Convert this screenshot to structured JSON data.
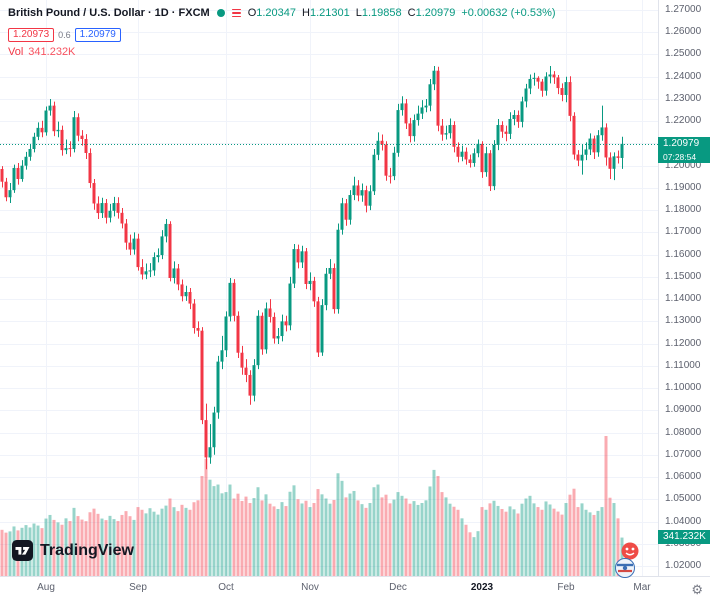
{
  "header": {
    "symbol_title": "British Pound / U.S. Dollar · 1D · FXCM",
    "ohlc": {
      "o_label": "O",
      "o": "1.20347",
      "h_label": "H",
      "h": "1.21301",
      "l_label": "L",
      "l": "1.19858",
      "c_label": "C",
      "c": "1.20979",
      "change": "+0.00632 (+0.53%)"
    },
    "bid": "1.20973",
    "spread": "0.6",
    "ask": "1.20979",
    "vol_label": "Vol",
    "vol_value": "341.232K"
  },
  "price_scale": {
    "labels": [
      "1.27000",
      "1.26000",
      "1.25000",
      "1.24000",
      "1.23000",
      "1.22000",
      "1.21000",
      "1.20000",
      "1.19000",
      "1.18000",
      "1.17000",
      "1.16000",
      "1.15000",
      "1.14000",
      "1.13000",
      "1.12000",
      "1.11000",
      "1.10000",
      "1.09000",
      "1.08000",
      "1.07000",
      "1.06000",
      "1.05000",
      "1.04000",
      "1.03000",
      "1.02000"
    ],
    "last_price_label": "1.20979",
    "countdown": "07:28:54",
    "volume_badge": "341.232K"
  },
  "time_scale": {
    "ticks": [
      {
        "label": "Aug",
        "index": 11
      },
      {
        "label": "Sep",
        "index": 34
      },
      {
        "label": "Oct",
        "index": 56
      },
      {
        "label": "Nov",
        "index": 77
      },
      {
        "label": "Dec",
        "index": 99
      },
      {
        "label": "2023",
        "index": 120,
        "year": true
      },
      {
        "label": "Feb",
        "index": 141
      },
      {
        "label": "Mar",
        "index": 160
      }
    ]
  },
  "footer": {
    "logo_text": "TradingView"
  },
  "icons": {
    "settings_gear": "⚙"
  },
  "colors": {
    "up": "#089981",
    "down": "#f23645",
    "bid": "#f23645",
    "ask": "#2962ff",
    "grid": "#f0f3fa",
    "axis_text": "#5d616e",
    "year_text": "#131722",
    "badge_bg": "#089981",
    "vol_value_text": "#f7525f"
  },
  "chart_data": {
    "type": "candlestick",
    "title": "British Pound / U.S. Dollar",
    "symbol": "GBPUSD",
    "interval": "1D",
    "exchange": "FXCM",
    "legend_ohlc": {
      "open": 1.20347,
      "high": 1.21301,
      "low": 1.19858,
      "close": 1.20979,
      "change": 0.00632,
      "change_pct": 0.53
    },
    "current_volume_k": 341.232,
    "x_tick_labels": [
      "Aug",
      "Sep",
      "Oct",
      "Nov",
      "Dec",
      "2023",
      "Feb",
      "Mar"
    ],
    "y_tick_range": [
      1.02,
      1.27
    ],
    "y_tick_step": 0.01,
    "price_range": [
      1.0155,
      1.2745
    ],
    "grid": true,
    "volume_max": 1243,
    "candles": [
      [
        1.1985,
        1.1998,
        1.1902,
        1.1928
      ],
      [
        1.1928,
        1.1945,
        1.184,
        1.1858
      ],
      [
        1.1858,
        1.1922,
        1.1832,
        1.189
      ],
      [
        1.189,
        1.2005,
        1.1878,
        1.199
      ],
      [
        1.199,
        1.2012,
        1.1915,
        1.194
      ],
      [
        1.194,
        1.2025,
        1.1928,
        1.2
      ],
      [
        1.2,
        1.2062,
        1.1982,
        1.204
      ],
      [
        1.204,
        1.2098,
        1.2022,
        1.2075
      ],
      [
        1.2075,
        1.2148,
        1.206,
        1.213
      ],
      [
        1.213,
        1.2195,
        1.2115,
        1.217
      ],
      [
        1.217,
        1.2202,
        1.2128,
        1.215
      ],
      [
        1.215,
        1.2266,
        1.2135,
        1.2248
      ],
      [
        1.2248,
        1.23,
        1.2225,
        1.227
      ],
      [
        1.227,
        1.2288,
        1.2133,
        1.2155
      ],
      [
        1.2155,
        1.2198,
        1.2128,
        1.2161
      ],
      [
        1.2161,
        1.218,
        1.2045,
        1.207
      ],
      [
        1.207,
        1.2118,
        1.2052,
        1.2079
      ],
      [
        1.2079,
        1.211,
        1.204,
        1.2075
      ],
      [
        1.2075,
        1.2246,
        1.206,
        1.2218
      ],
      [
        1.2218,
        1.2235,
        1.211,
        1.2135
      ],
      [
        1.2135,
        1.216,
        1.209,
        1.212
      ],
      [
        1.212,
        1.2142,
        1.203,
        1.2057
      ],
      [
        1.2057,
        1.2078,
        1.19,
        1.1922
      ],
      [
        1.1922,
        1.194,
        1.1802,
        1.183
      ],
      [
        1.183,
        1.1862,
        1.176,
        1.1787
      ],
      [
        1.1787,
        1.1856,
        1.1765,
        1.1832
      ],
      [
        1.1832,
        1.185,
        1.174,
        1.1766
      ],
      [
        1.1766,
        1.1828,
        1.1745,
        1.1797
      ],
      [
        1.1797,
        1.186,
        1.1772,
        1.1832
      ],
      [
        1.1832,
        1.1858,
        1.1762,
        1.1788
      ],
      [
        1.1788,
        1.181,
        1.1718,
        1.174
      ],
      [
        1.174,
        1.176,
        1.1622,
        1.1654
      ],
      [
        1.1654,
        1.169,
        1.1598,
        1.1623
      ],
      [
        1.1623,
        1.17,
        1.16,
        1.1672
      ],
      [
        1.1672,
        1.1694,
        1.1528,
        1.1544
      ],
      [
        1.1544,
        1.158,
        1.1488,
        1.1511
      ],
      [
        1.1511,
        1.156,
        1.149,
        1.1525
      ],
      [
        1.1525,
        1.1562,
        1.1499,
        1.1529
      ],
      [
        1.1529,
        1.161,
        1.1505,
        1.1589
      ],
      [
        1.1589,
        1.1628,
        1.1565,
        1.1598
      ],
      [
        1.1598,
        1.171,
        1.158,
        1.1682
      ],
      [
        1.1682,
        1.176,
        1.1655,
        1.1738
      ],
      [
        1.1738,
        1.175,
        1.148,
        1.1495
      ],
      [
        1.1495,
        1.157,
        1.147,
        1.1538
      ],
      [
        1.1538,
        1.1558,
        1.144,
        1.1466
      ],
      [
        1.1466,
        1.1488,
        1.139,
        1.1413
      ],
      [
        1.1413,
        1.146,
        1.1392,
        1.1432
      ],
      [
        1.1432,
        1.145,
        1.1355,
        1.138
      ],
      [
        1.138,
        1.14,
        1.1245,
        1.127
      ],
      [
        1.127,
        1.13,
        1.123,
        1.1258
      ],
      [
        1.1258,
        1.1274,
        1.0838,
        1.0856
      ],
      [
        1.0856,
        1.093,
        1.0635,
        1.0688
      ],
      [
        1.0688,
        1.0838,
        1.066,
        1.0734
      ],
      [
        1.0734,
        1.0916,
        1.07,
        1.089
      ],
      [
        1.089,
        1.1145,
        1.0862,
        1.1119
      ],
      [
        1.1119,
        1.1235,
        1.1085,
        1.117
      ],
      [
        1.117,
        1.1345,
        1.114,
        1.1322
      ],
      [
        1.1322,
        1.1495,
        1.13,
        1.1473
      ],
      [
        1.1473,
        1.149,
        1.13,
        1.1325
      ],
      [
        1.1325,
        1.1345,
        1.1135,
        1.1159
      ],
      [
        1.1159,
        1.119,
        1.106,
        1.1092
      ],
      [
        1.1092,
        1.113,
        1.1027,
        1.1059
      ],
      [
        1.1059,
        1.108,
        1.0925,
        1.0966
      ],
      [
        1.0966,
        1.113,
        1.094,
        1.1103
      ],
      [
        1.1103,
        1.135,
        1.1085,
        1.1325
      ],
      [
        1.1325,
        1.134,
        1.115,
        1.1174
      ],
      [
        1.1174,
        1.1385,
        1.1155,
        1.1358
      ],
      [
        1.1358,
        1.14,
        1.1295,
        1.132
      ],
      [
        1.132,
        1.134,
        1.12,
        1.1223
      ],
      [
        1.1223,
        1.127,
        1.1198,
        1.1234
      ],
      [
        1.1234,
        1.133,
        1.121,
        1.13
      ],
      [
        1.13,
        1.1325,
        1.1255,
        1.1282
      ],
      [
        1.1282,
        1.15,
        1.126,
        1.147
      ],
      [
        1.147,
        1.1648,
        1.145,
        1.1625
      ],
      [
        1.1625,
        1.1645,
        1.1538,
        1.1565
      ],
      [
        1.1565,
        1.164,
        1.154,
        1.1615
      ],
      [
        1.1615,
        1.163,
        1.1445,
        1.1468
      ],
      [
        1.1468,
        1.152,
        1.144,
        1.1482
      ],
      [
        1.1482,
        1.15,
        1.1365,
        1.139
      ],
      [
        1.139,
        1.141,
        1.114,
        1.116
      ],
      [
        1.116,
        1.14,
        1.1145,
        1.1373
      ],
      [
        1.1373,
        1.154,
        1.135,
        1.1514
      ],
      [
        1.1514,
        1.158,
        1.149,
        1.154
      ],
      [
        1.154,
        1.156,
        1.1335,
        1.1355
      ],
      [
        1.1355,
        1.174,
        1.1335,
        1.1712
      ],
      [
        1.1712,
        1.1855,
        1.169,
        1.1831
      ],
      [
        1.1831,
        1.185,
        1.173,
        1.1757
      ],
      [
        1.1757,
        1.189,
        1.1735,
        1.1868
      ],
      [
        1.1868,
        1.195,
        1.1845,
        1.1911
      ],
      [
        1.1911,
        1.1935,
        1.184,
        1.1866
      ],
      [
        1.1866,
        1.192,
        1.1838,
        1.189
      ],
      [
        1.189,
        1.191,
        1.179,
        1.182
      ],
      [
        1.182,
        1.1912,
        1.18,
        1.1885
      ],
      [
        1.1885,
        1.2075,
        1.1868,
        1.2049
      ],
      [
        1.2049,
        1.215,
        1.2025,
        1.2112
      ],
      [
        1.2112,
        1.214,
        1.2068,
        1.2095
      ],
      [
        1.2095,
        1.211,
        1.1932,
        1.1955
      ],
      [
        1.1955,
        1.199,
        1.192,
        1.1953
      ],
      [
        1.1953,
        1.2085,
        1.1935,
        1.2058
      ],
      [
        1.2058,
        1.2278,
        1.204,
        1.225
      ],
      [
        1.225,
        1.2312,
        1.2225,
        1.228
      ],
      [
        1.228,
        1.23,
        1.2165,
        1.219
      ],
      [
        1.219,
        1.2215,
        1.2105,
        1.2133
      ],
      [
        1.2133,
        1.223,
        1.2108,
        1.2205
      ],
      [
        1.2205,
        1.227,
        1.218,
        1.2234
      ],
      [
        1.2234,
        1.2295,
        1.221,
        1.2262
      ],
      [
        1.2262,
        1.23,
        1.224,
        1.227
      ],
      [
        1.227,
        1.239,
        1.2245,
        1.2366
      ],
      [
        1.2366,
        1.2448,
        1.234,
        1.2427
      ],
      [
        1.2427,
        1.2445,
        1.2155,
        1.218
      ],
      [
        1.218,
        1.221,
        1.2112,
        1.214
      ],
      [
        1.214,
        1.218,
        1.2118,
        1.2146
      ],
      [
        1.2146,
        1.2212,
        1.2122,
        1.2183
      ],
      [
        1.2183,
        1.22,
        1.206,
        1.2085
      ],
      [
        1.2085,
        1.2105,
        1.2015,
        1.204
      ],
      [
        1.204,
        1.209,
        1.202,
        1.2063
      ],
      [
        1.2063,
        1.2082,
        1.2005,
        1.2028
      ],
      [
        1.2028,
        1.205,
        1.1992,
        1.2012
      ],
      [
        1.2012,
        1.2078,
        1.1995,
        1.2056
      ],
      [
        1.2056,
        1.2118,
        1.2038,
        1.2098
      ],
      [
        1.2098,
        1.211,
        1.1945,
        1.1971
      ],
      [
        1.1971,
        1.2085,
        1.195,
        1.2056
      ],
      [
        1.2056,
        1.207,
        1.1886,
        1.1908
      ],
      [
        1.1908,
        1.2115,
        1.189,
        1.2093
      ],
      [
        1.2093,
        1.221,
        1.207,
        1.2183
      ],
      [
        1.2183,
        1.22,
        1.2125,
        1.2153
      ],
      [
        1.2153,
        1.218,
        1.211,
        1.2143
      ],
      [
        1.2143,
        1.224,
        1.212,
        1.221
      ],
      [
        1.221,
        1.225,
        1.2182,
        1.2228
      ],
      [
        1.2228,
        1.2248,
        1.217,
        1.2197
      ],
      [
        1.2197,
        1.231,
        1.2172,
        1.2289
      ],
      [
        1.2289,
        1.2368,
        1.2262,
        1.2347
      ],
      [
        1.2347,
        1.241,
        1.2322,
        1.239
      ],
      [
        1.239,
        1.2418,
        1.236,
        1.2395
      ],
      [
        1.2395,
        1.2402,
        1.2346,
        1.2378
      ],
      [
        1.2378,
        1.239,
        1.231,
        1.2337
      ],
      [
        1.2337,
        1.242,
        1.2315,
        1.2401
      ],
      [
        1.2401,
        1.2448,
        1.237,
        1.241
      ],
      [
        1.241,
        1.2425,
        1.2368,
        1.2397
      ],
      [
        1.2397,
        1.2408,
        1.2322,
        1.2349
      ],
      [
        1.2349,
        1.237,
        1.229,
        1.2318
      ],
      [
        1.2318,
        1.24,
        1.2285,
        1.2376
      ],
      [
        1.2376,
        1.2402,
        1.22,
        1.2224
      ],
      [
        1.2224,
        1.224,
        1.2028,
        1.205
      ],
      [
        1.205,
        1.207,
        1.1998,
        1.2023
      ],
      [
        1.2023,
        1.2095,
        1.196,
        1.2049
      ],
      [
        1.2049,
        1.2105,
        1.2025,
        1.2073
      ],
      [
        1.2073,
        1.2145,
        1.2048,
        1.2122
      ],
      [
        1.2122,
        1.2135,
        1.203,
        1.206
      ],
      [
        1.206,
        1.216,
        1.204,
        1.2137
      ],
      [
        1.2137,
        1.227,
        1.2112,
        1.2172
      ],
      [
        1.2172,
        1.219,
        1.2,
        1.2037
      ],
      [
        1.2037,
        1.206,
        1.194,
        1.1986
      ],
      [
        1.1986,
        1.206,
        1.1935,
        1.2042
      ],
      [
        1.2042,
        1.2068,
        1.201,
        1.2035
      ],
      [
        1.20347,
        1.21301,
        1.19858,
        1.20979
      ]
    ],
    "volumes": [
      410,
      385,
      396,
      440,
      405,
      428,
      452,
      431,
      466,
      448,
      425,
      510,
      542,
      498,
      476,
      455,
      512,
      488,
      605,
      532,
      501,
      487,
      566,
      598,
      552,
      510,
      496,
      534,
      505,
      488,
      542,
      576,
      531,
      498,
      612,
      588,
      556,
      602,
      571,
      545,
      598,
      625,
      688,
      611,
      576,
      632,
      605,
      588,
      655,
      672,
      888,
      1042,
      855,
      798,
      812,
      734,
      745,
      812,
      688,
      731,
      666,
      705,
      648,
      692,
      788,
      671,
      725,
      642,
      618,
      595,
      656,
      621,
      748,
      805,
      682,
      644,
      668,
      612,
      648,
      772,
      725,
      688,
      642,
      675,
      912,
      845,
      698,
      732,
      755,
      671,
      638,
      605,
      648,
      788,
      812,
      698,
      722,
      645,
      678,
      745,
      712,
      688,
      642,
      665,
      631,
      648,
      672,
      795,
      942,
      888,
      745,
      698,
      642,
      615,
      588,
      512,
      455,
      388,
      345,
      398,
      612,
      588,
      645,
      668,
      622,
      595,
      571,
      618,
      592,
      555,
      642,
      688,
      712,
      645,
      612,
      588,
      662,
      635,
      598,
      572,
      545,
      648,
      722,
      775,
      612,
      645,
      588,
      565,
      542,
      578,
      612,
      1243,
      695,
      648,
      512,
      341.232
    ]
  }
}
